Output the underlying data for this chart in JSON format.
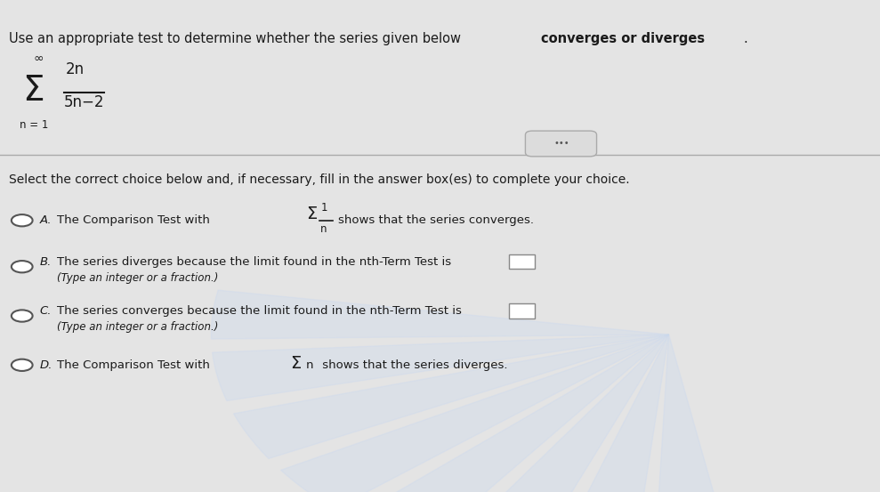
{
  "bg_color": "#d0d0d0",
  "panel_color": "#e4e4e4",
  "text_color": "#1a1a1a",
  "title_line1": "Use an appropriate test to determine whether the series given below ",
  "title_bold": "converges or diverges",
  "title_end": ".",
  "series_numerator": "2n",
  "series_denominator": "5n−2",
  "series_from": "n = 1",
  "series_inf": "∞",
  "divider_button_text": "•••",
  "select_text": "Select the correct choice below and, if necessary, fill in the answer box(es) to complete your choice.",
  "option_A": "The Comparison Test with",
  "option_A_frac_num": "1",
  "option_A_frac_den": "n",
  "option_A_end": "shows that the series converges.",
  "option_B_line1": "The series diverges because the limit found in the nth-Term Test is",
  "option_B_line2": "(Type an integer or a fraction.)",
  "option_C_line1": "The series converges because the limit found in the nth-Term Test is",
  "option_C_line2": "(Type an integer or a fraction.)",
  "option_D": "The Comparison Test with",
  "option_D_n": "n",
  "option_D_end": "shows that the series diverges.",
  "watermark_color": "#c8d8f0"
}
